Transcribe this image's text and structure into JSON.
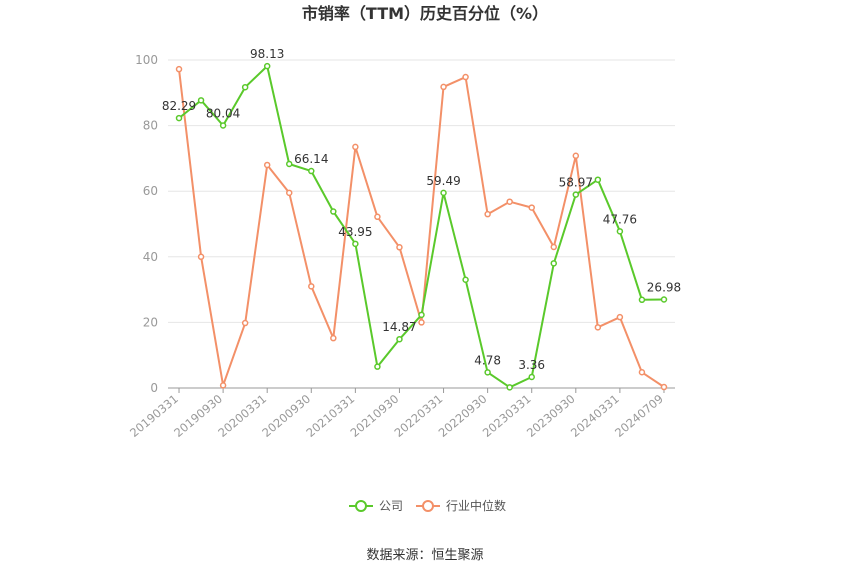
{
  "chart_data": {
    "type": "line",
    "title": "市销率（TTM）历史百分位（%）",
    "ylim": [
      0,
      100
    ],
    "y_ticks": [
      0,
      20,
      40,
      60,
      80,
      100
    ],
    "x_tick_labels": [
      "20190331",
      "20190930",
      "20200331",
      "20200930",
      "20210331",
      "20210930",
      "20220331",
      "20220930",
      "20230331",
      "20230930",
      "20240331",
      "20240709"
    ],
    "x": [
      "20190331",
      "20190630",
      "20190930",
      "20191231",
      "20200331",
      "20200630",
      "20200930",
      "20201231",
      "20210331",
      "20210630",
      "20210930",
      "20211231",
      "20220331",
      "20220630",
      "20220930",
      "20221231",
      "20230331",
      "20230630",
      "20230930",
      "20231231",
      "20240331",
      "20240630",
      "20240709"
    ],
    "grid": true,
    "legend_position": "bottom",
    "series": [
      {
        "name": "公司",
        "color": "#5ac92b",
        "values": [
          82.29,
          87.7,
          80.04,
          91.7,
          98.13,
          68.3,
          66.14,
          53.8,
          43.95,
          6.5,
          14.87,
          22.3,
          59.49,
          33.0,
          4.78,
          0.2,
          3.36,
          38.0,
          58.97,
          63.5,
          47.76,
          26.9,
          26.98
        ],
        "labels": {
          "0": "82.29",
          "2": "80.04",
          "4": "98.13",
          "6": "66.14",
          "8": "43.95",
          "10": "14.87",
          "12": "59.49",
          "14": "4.78",
          "16": "3.36",
          "18": "58.97",
          "20": "47.76",
          "22": "26.98"
        }
      },
      {
        "name": "行业中位数",
        "color": "#f39068",
        "values": [
          97.2,
          40.0,
          0.8,
          19.8,
          68.0,
          59.5,
          31.0,
          15.2,
          73.5,
          52.2,
          42.9,
          20.0,
          91.8,
          94.8,
          53.0,
          56.8,
          55.0,
          43.0,
          70.8,
          18.5,
          21.6,
          4.8,
          0.3
        ]
      }
    ]
  },
  "footer": {
    "source": "数据来源：恒生聚源"
  }
}
